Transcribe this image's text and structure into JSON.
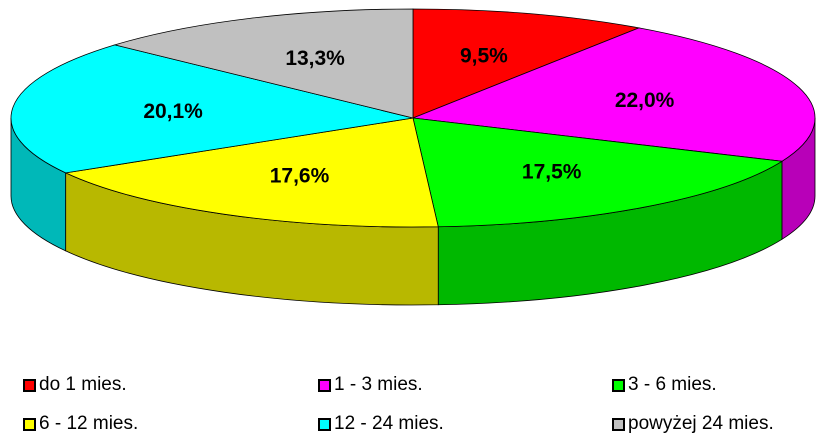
{
  "chart_data": {
    "type": "pie",
    "variant": "3d",
    "categories": [
      "do 1 mies.",
      "1 - 3 mies.",
      "3 - 6 mies.",
      "6 - 12 mies.",
      "12 - 24 mies.",
      "powyżej 24 mies."
    ],
    "values": [
      9.5,
      22.0,
      17.5,
      17.6,
      20.1,
      13.3
    ],
    "data_labels": [
      "9,5%",
      "22,0%",
      "17,5%",
      "17,6%",
      "20,1%",
      "13,3%"
    ],
    "colors": [
      "#ff0000",
      "#ff00ff",
      "#00ff00",
      "#ffff00",
      "#00ffff",
      "#c0c0c0"
    ],
    "start_angle_deg": -90,
    "direction": "clockwise",
    "title": "",
    "legend_position": "bottom"
  }
}
